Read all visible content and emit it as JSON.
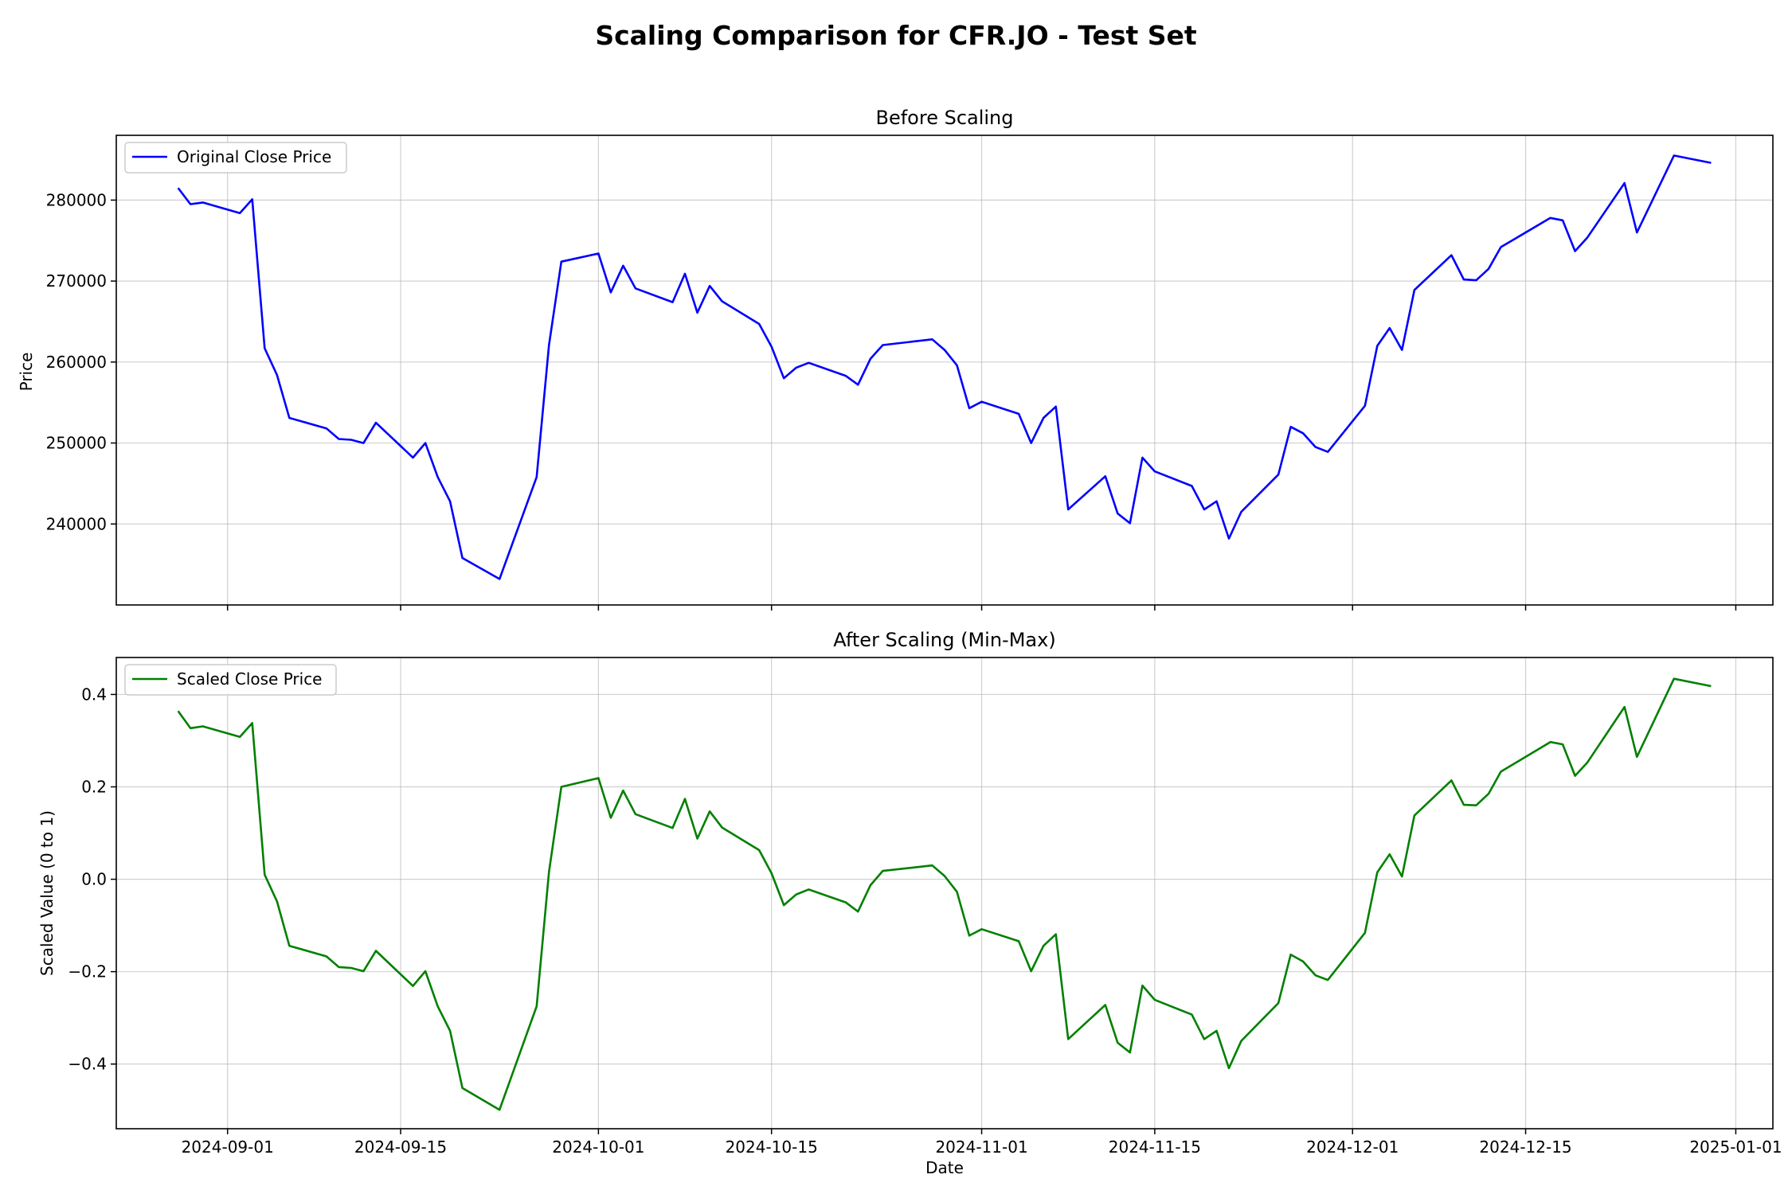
{
  "chart_data": {
    "title": "Scaling Comparison for CFR.JO - Test Set",
    "xlabel": "Date",
    "x_ticks": [
      "2024-09-01",
      "2024-09-15",
      "2024-10-01",
      "2024-10-15",
      "2024-11-01",
      "2024-11-15",
      "2024-12-01",
      "2024-12-15",
      "2025-01-01"
    ],
    "x_range": [
      "2024-08-23",
      "2025-01-04"
    ],
    "grid": true,
    "dates": [
      "2024-08-28",
      "2024-08-29",
      "2024-08-30",
      "2024-09-02",
      "2024-09-03",
      "2024-09-04",
      "2024-09-05",
      "2024-09-06",
      "2024-09-09",
      "2024-09-10",
      "2024-09-11",
      "2024-09-12",
      "2024-09-13",
      "2024-09-16",
      "2024-09-17",
      "2024-09-18",
      "2024-09-19",
      "2024-09-20",
      "2024-09-23",
      "2024-09-26",
      "2024-09-27",
      "2024-09-28",
      "2024-10-01",
      "2024-10-02",
      "2024-10-03",
      "2024-10-04",
      "2024-10-07",
      "2024-10-08",
      "2024-10-09",
      "2024-10-10",
      "2024-10-11",
      "2024-10-14",
      "2024-10-15",
      "2024-10-16",
      "2024-10-17",
      "2024-10-18",
      "2024-10-21",
      "2024-10-22",
      "2024-10-23",
      "2024-10-24",
      "2024-10-28",
      "2024-10-29",
      "2024-10-30",
      "2024-10-31",
      "2024-11-01",
      "2024-11-04",
      "2024-11-05",
      "2024-11-06",
      "2024-11-07",
      "2024-11-08",
      "2024-11-11",
      "2024-11-12",
      "2024-11-13",
      "2024-11-14",
      "2024-11-15",
      "2024-11-18",
      "2024-11-19",
      "2024-11-20",
      "2024-11-21",
      "2024-11-22",
      "2024-11-25",
      "2024-11-26",
      "2024-11-27",
      "2024-11-28",
      "2024-11-29",
      "2024-12-02",
      "2024-12-03",
      "2024-12-04",
      "2024-12-05",
      "2024-12-06",
      "2024-12-09",
      "2024-12-10",
      "2024-12-11",
      "2024-12-12",
      "2024-12-13",
      "2024-12-17",
      "2024-12-18",
      "2024-12-19",
      "2024-12-20",
      "2024-12-23",
      "2024-12-24",
      "2024-12-27",
      "2024-12-30"
    ],
    "panels": [
      {
        "title": "Before Scaling",
        "ylabel": "Price",
        "yticks": [
          240000,
          250000,
          260000,
          270000,
          280000
        ],
        "ylim": [
          230000,
          288000
        ],
        "series": [
          {
            "name": "Original Close Price",
            "color": "#0000ff",
            "values": [
              281500,
              279500,
              279700,
              278400,
              280100,
              261700,
              258400,
              253100,
              251800,
              250500,
              250400,
              250000,
              252500,
              248200,
              250000,
              245800,
              242800,
              235800,
              233200,
              245800,
              262100,
              272400,
              273400,
              268600,
              271900,
              269100,
              267400,
              270900,
              266100,
              269400,
              267500,
              264700,
              261900,
              258000,
              259300,
              259900,
              258300,
              257200,
              260400,
              262100,
              262800,
              261500,
              259600,
              254300,
              255100,
              253600,
              250000,
              253100,
              254500,
              241800,
              245900,
              241300,
              240100,
              248200,
              246500,
              244700,
              241800,
              242800,
              238200,
              241500,
              246100,
              252000,
              251200,
              249500,
              248900,
              254600,
              262000,
              264200,
              261500,
              268900,
              273200,
              270200,
              270100,
              271500,
              274200,
              277800,
              277500,
              273700,
              275400,
              282100,
              276000,
              285500,
              284600
            ]
          }
        ]
      },
      {
        "title": "After Scaling (Min-Max)",
        "ylabel": "Scaled Value (0 to 1)",
        "yticks": [
          -0.4,
          -0.2,
          0.0,
          0.2,
          0.4
        ],
        "ylim": [
          -0.54,
          0.48
        ],
        "series": [
          {
            "name": "Scaled Close Price",
            "color": "#008000",
            "values": [
              0.364,
              0.327,
              0.331,
              0.308,
              0.338,
              0.01,
              -0.048,
              -0.144,
              -0.167,
              -0.19,
              -0.192,
              -0.199,
              -0.155,
              -0.231,
              -0.199,
              -0.275,
              -0.328,
              -0.452,
              -0.499,
              -0.275,
              0.016,
              0.2,
              0.219,
              0.133,
              0.192,
              0.141,
              0.111,
              0.174,
              0.088,
              0.147,
              0.112,
              0.063,
              0.013,
              -0.056,
              -0.033,
              -0.022,
              -0.05,
              -0.07,
              -0.013,
              0.018,
              0.03,
              0.007,
              -0.027,
              -0.122,
              -0.108,
              -0.134,
              -0.199,
              -0.144,
              -0.119,
              -0.346,
              -0.272,
              -0.354,
              -0.375,
              -0.23,
              -0.261,
              -0.293,
              -0.346,
              -0.328,
              -0.409,
              -0.35,
              -0.268,
              -0.163,
              -0.178,
              -0.208,
              -0.218,
              -0.116,
              0.015,
              0.054,
              0.006,
              0.138,
              0.214,
              0.161,
              0.16,
              0.185,
              0.233,
              0.297,
              0.292,
              0.224,
              0.253,
              0.373,
              0.265,
              0.434,
              0.418
            ]
          }
        ]
      }
    ]
  }
}
